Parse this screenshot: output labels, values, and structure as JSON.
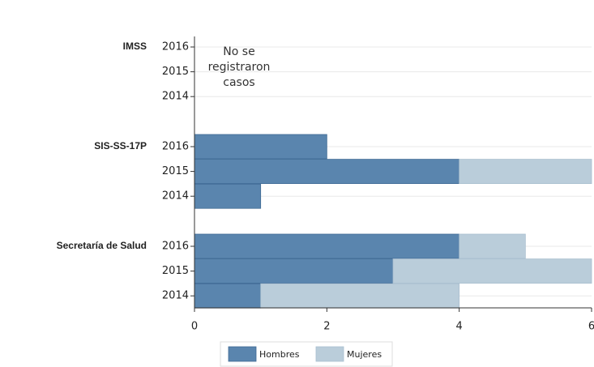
{
  "chart_data": {
    "type": "stacked_barh",
    "group_labels": [
      "IMSS",
      "SIS-SS-17P",
      "Secretaría de Salud"
    ],
    "categories": [
      "2016",
      "2015",
      "2014",
      "2016",
      "2015",
      "2014",
      "2016",
      "2015",
      "2014"
    ],
    "series": [
      {
        "name": "Hombres",
        "color": "#5a85ae",
        "values": [
          0,
          0,
          0,
          2,
          4,
          1,
          4,
          3,
          1
        ]
      },
      {
        "name": "Mujeres",
        "color": "#bacdda",
        "values": [
          0,
          0,
          0,
          0,
          2,
          0,
          1,
          3,
          3
        ]
      }
    ],
    "annotation": [
      "No se",
      "registraron",
      "casos"
    ],
    "xlim": [
      0,
      6
    ],
    "xticks": [
      0,
      2,
      4,
      6
    ],
    "grid": true
  }
}
